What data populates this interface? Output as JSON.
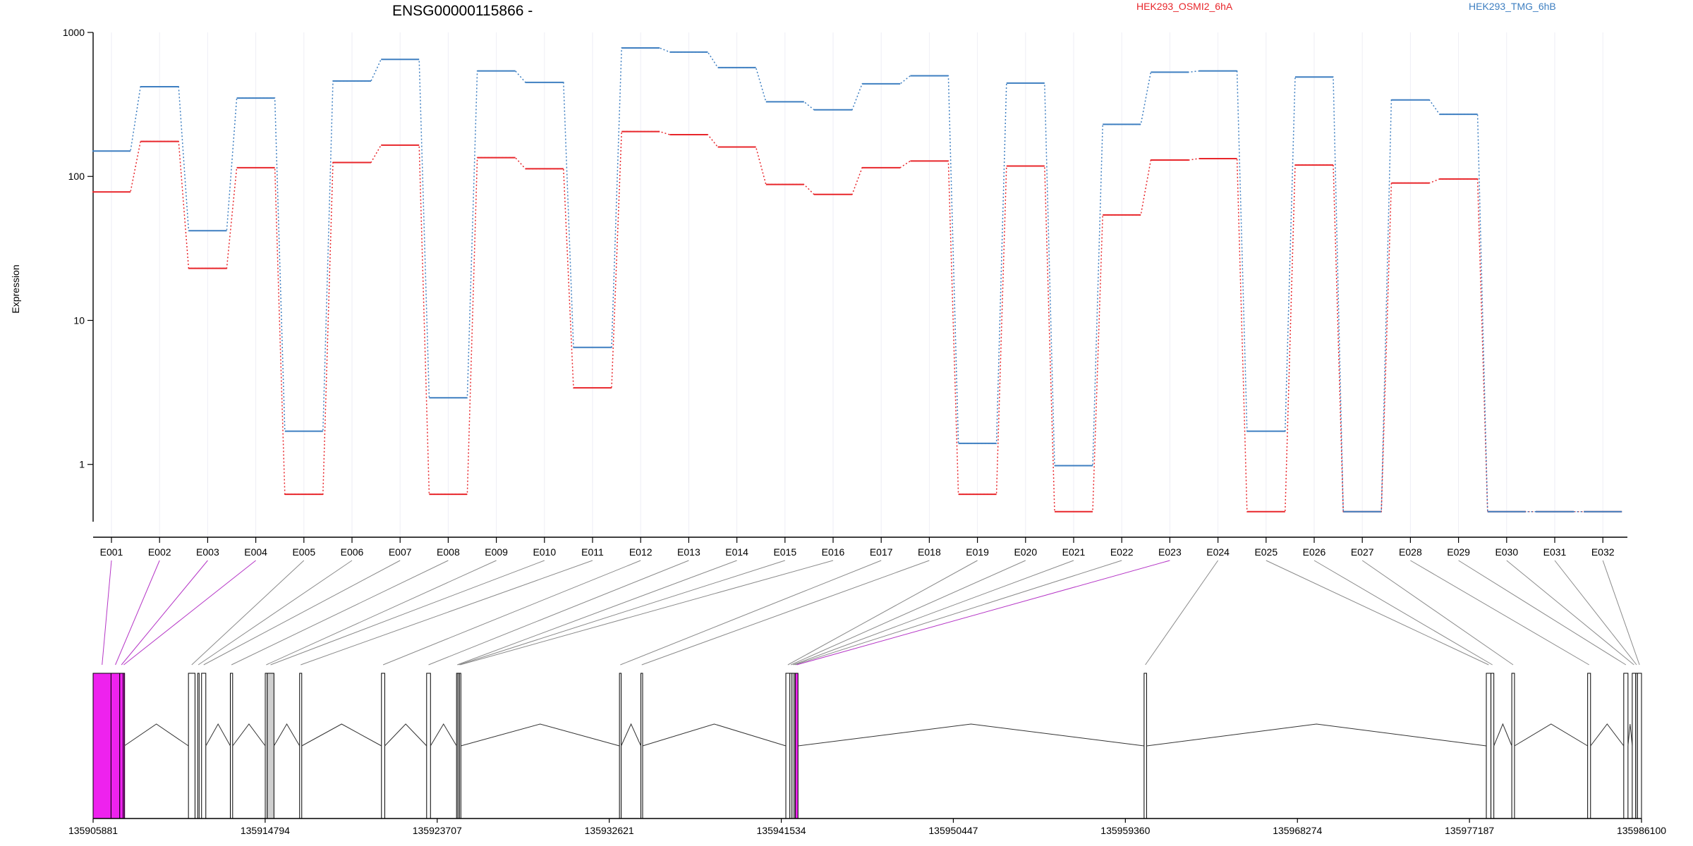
{
  "chart_data": {
    "type": "line",
    "title": "ENSG00000115866 -",
    "ylabel": "Expression",
    "y_scale": "log",
    "ylim": [
      0.4,
      1000
    ],
    "y_ticks": [
      "1000",
      "100",
      "10",
      "1"
    ],
    "y_tick_values": [
      1000,
      100,
      10,
      1
    ],
    "categories": [
      "E001",
      "E002",
      "E003",
      "E004",
      "E005",
      "E006",
      "E007",
      "E008",
      "E009",
      "E010",
      "E011",
      "E012",
      "E013",
      "E014",
      "E015",
      "E016",
      "E017",
      "E018",
      "E019",
      "E020",
      "E021",
      "E022",
      "E023",
      "E024",
      "E025",
      "E026",
      "E027",
      "E028",
      "E029",
      "E030",
      "E031",
      "E032"
    ],
    "series": [
      {
        "name": "HEK293_OSMI2_6hA",
        "color": "#e8262b",
        "values": [
          78,
          175,
          23,
          115,
          0.62,
          125,
          165,
          0.62,
          135,
          113,
          3.4,
          205,
          195,
          160,
          88,
          75,
          115,
          128,
          0.62,
          118,
          0.47,
          54,
          130,
          133,
          0.47,
          120,
          0.47,
          90,
          96,
          0.47,
          0.47,
          0.47
        ]
      },
      {
        "name": "HEK293_TMG_6hB",
        "color": "#3e7fc1",
        "values": [
          150,
          420,
          42,
          350,
          1.7,
          460,
          650,
          2.9,
          540,
          450,
          6.5,
          780,
          730,
          570,
          330,
          290,
          440,
          500,
          1.4,
          445,
          0.98,
          230,
          530,
          540,
          1.7,
          490,
          0.47,
          340,
          270,
          0.47,
          0.47,
          0.47
        ]
      }
    ],
    "gene_model": {
      "coordinates": [
        "135905881",
        "135914794",
        "135923707",
        "135932621",
        "135941534",
        "135950447",
        "135959360",
        "135968274",
        "135977187",
        "135986100"
      ],
      "coordinate_values": [
        135905881,
        135914794,
        135923707,
        135932621,
        135941534,
        135950447,
        135959360,
        135968274,
        135977187,
        135986100
      ],
      "highlight_color": "#ee22ee",
      "highlighted_exons": [
        "E001",
        "E002",
        "E003",
        "E004",
        "E023"
      ],
      "exons": [
        {
          "id": "E001",
          "start": 135905881,
          "end": 135906810,
          "kind": "highlight"
        },
        {
          "id": "E002",
          "start": 135906810,
          "end": 135907260,
          "kind": "highlight"
        },
        {
          "id": "E003",
          "start": 135907260,
          "end": 135907440,
          "kind": "highlight"
        },
        {
          "id": "E004",
          "start": 135907440,
          "end": 135907495,
          "kind": "highlight"
        },
        {
          "id": "E005",
          "start": 135910820,
          "end": 135911160,
          "kind": "plain"
        },
        {
          "id": "E006",
          "start": 135911300,
          "end": 135911360,
          "kind": "plain"
        },
        {
          "id": "E007",
          "start": 135911500,
          "end": 135911720,
          "kind": "plain"
        },
        {
          "id": "E008",
          "start": 135912990,
          "end": 135913110,
          "kind": "plain"
        },
        {
          "id": "E009",
          "start": 135914800,
          "end": 135914900,
          "kind": "plain"
        },
        {
          "id": "E010",
          "start": 135914900,
          "end": 135915250,
          "kind": "shaded"
        },
        {
          "id": "E011",
          "start": 135916580,
          "end": 135916690,
          "kind": "plain"
        },
        {
          "id": "E012",
          "start": 135920820,
          "end": 135920990,
          "kind": "plain"
        },
        {
          "id": "E013",
          "start": 135923160,
          "end": 135923360,
          "kind": "plain"
        },
        {
          "id": "E014",
          "start": 135924710,
          "end": 135924780,
          "kind": "plain"
        },
        {
          "id": "E015",
          "start": 135924780,
          "end": 135924860,
          "kind": "plain"
        },
        {
          "id": "E016",
          "start": 135924860,
          "end": 135924930,
          "kind": "plain"
        },
        {
          "id": "E017",
          "start": 135933150,
          "end": 135933240,
          "kind": "plain"
        },
        {
          "id": "E018",
          "start": 135934260,
          "end": 135934350,
          "kind": "plain"
        },
        {
          "id": "E019",
          "start": 135941770,
          "end": 135941980,
          "kind": "plain"
        },
        {
          "id": "E020",
          "start": 135941980,
          "end": 135942090,
          "kind": "plain"
        },
        {
          "id": "E021",
          "start": 135942090,
          "end": 135942200,
          "kind": "plain"
        },
        {
          "id": "E022",
          "start": 135942200,
          "end": 135942260,
          "kind": "plain"
        },
        {
          "id": "E023",
          "start": 135942260,
          "end": 135942400,
          "kind": "highlight"
        },
        {
          "id": "E024",
          "start": 135960330,
          "end": 135960460,
          "kind": "plain"
        },
        {
          "id": "E025",
          "start": 135978060,
          "end": 135978300,
          "kind": "plain"
        },
        {
          "id": "E026",
          "start": 135978300,
          "end": 135978450,
          "kind": "plain"
        },
        {
          "id": "E027",
          "start": 135979380,
          "end": 135979520,
          "kind": "plain"
        },
        {
          "id": "E028",
          "start": 135983310,
          "end": 135983460,
          "kind": "plain"
        },
        {
          "id": "E029",
          "start": 135985180,
          "end": 135985400,
          "kind": "plain"
        },
        {
          "id": "E030",
          "start": 135985620,
          "end": 135985800,
          "kind": "plain"
        },
        {
          "id": "E031",
          "start": 135985800,
          "end": 135985890,
          "kind": "plain"
        },
        {
          "id": "E032",
          "start": 135985890,
          "end": 135986100,
          "kind": "plain"
        }
      ]
    }
  }
}
